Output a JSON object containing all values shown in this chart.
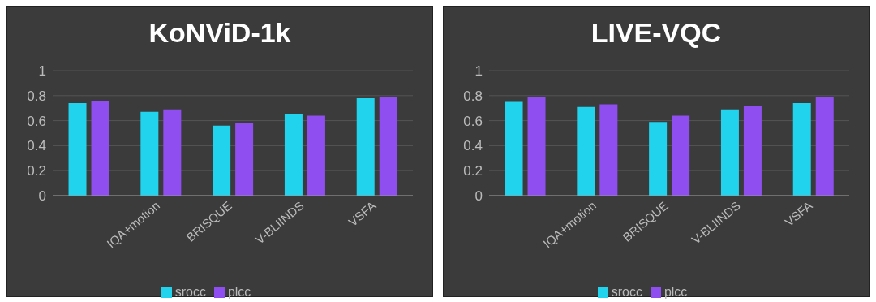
{
  "chart_data": [
    {
      "type": "bar",
      "title": "KoNViD-1k",
      "categories": [
        null,
        "IQA+motion",
        "BRISQUE",
        "V-BLIINDS",
        "VSFA"
      ],
      "series": [
        {
          "name": "srocc",
          "color": "#22d3ee",
          "values": [
            0.74,
            0.67,
            0.56,
            0.65,
            0.78
          ]
        },
        {
          "name": "plcc",
          "color": "#8f4ff0",
          "values": [
            0.76,
            0.69,
            0.58,
            0.64,
            0.79
          ]
        }
      ],
      "ylim": [
        0,
        1
      ],
      "yticks": [
        0,
        0.2,
        0.4,
        0.6,
        0.8,
        1
      ],
      "grid": "y",
      "legend": "bottom"
    },
    {
      "type": "bar",
      "title": "LIVE-VQC",
      "categories": [
        null,
        "IQA+motion",
        "BRISQUE",
        "V-BLIINDS",
        "VSFA"
      ],
      "series": [
        {
          "name": "srocc",
          "color": "#22d3ee",
          "values": [
            0.75,
            0.71,
            0.59,
            0.69,
            0.74
          ]
        },
        {
          "name": "plcc",
          "color": "#8f4ff0",
          "values": [
            0.79,
            0.73,
            0.64,
            0.72,
            0.79
          ]
        }
      ],
      "ylim": [
        0,
        1
      ],
      "yticks": [
        0,
        0.2,
        0.4,
        0.6,
        0.8,
        1
      ],
      "grid": "y",
      "legend": "bottom"
    }
  ]
}
